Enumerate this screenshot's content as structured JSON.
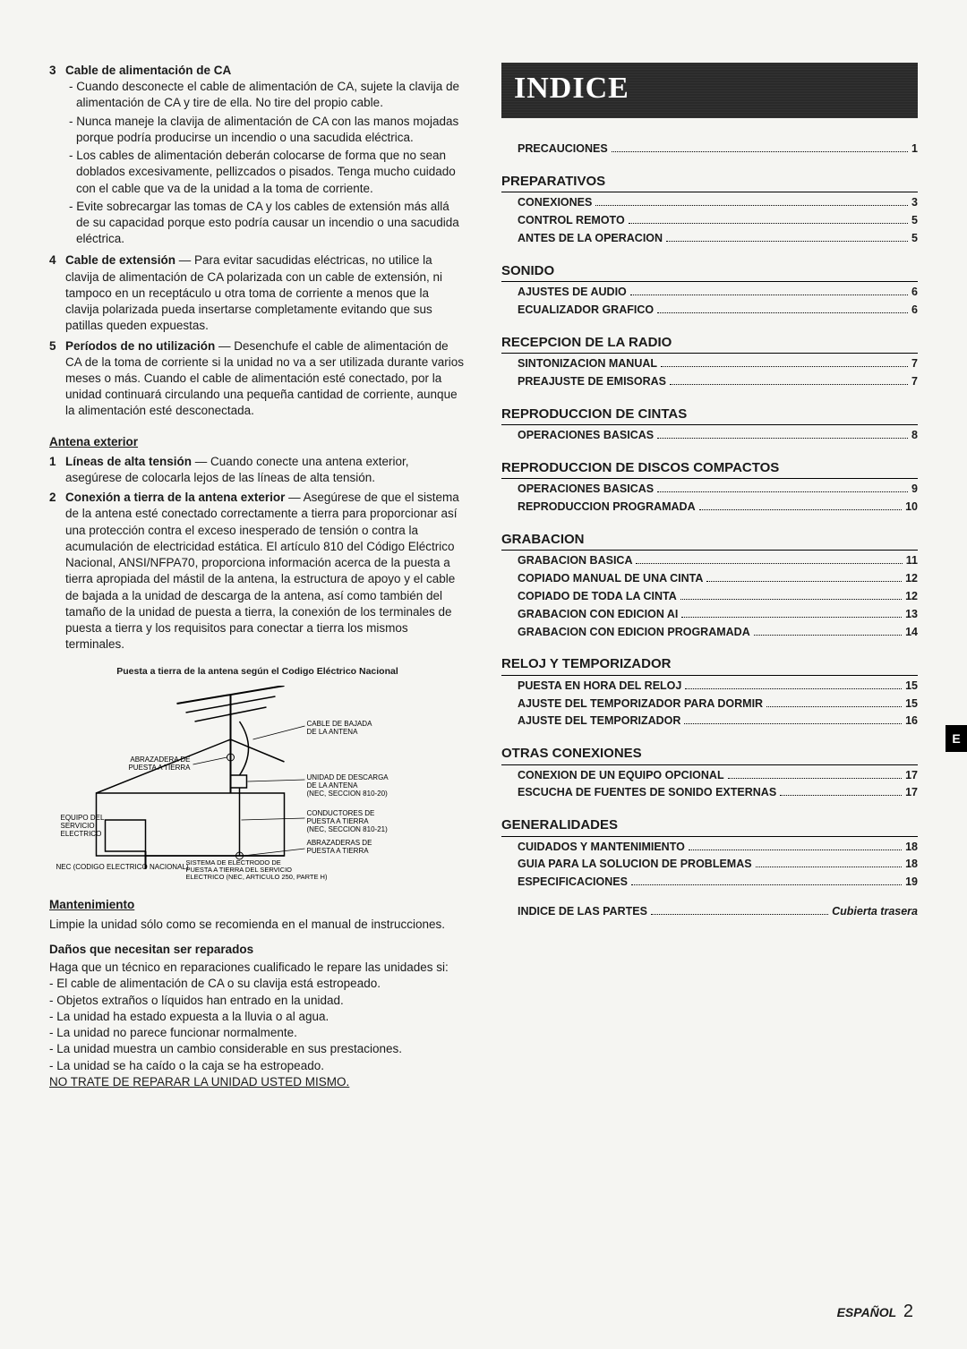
{
  "left": {
    "item3": {
      "num": "3",
      "title": "Cable de alimentación de CA",
      "bullets": [
        "- Cuando desconecte el cable de alimentación de CA, sujete la clavija de alimentación de CA y tire de ella. No tire del propio cable.",
        "- Nunca maneje la clavija de alimentación de CA con las manos mojadas porque podría producirse un incendio o una sacudida eléctrica.",
        "- Los cables de alimentación deberán colocarse de forma que no sean doblados excesivamente, pellizcados o pisados. Tenga mucho cuidado con el cable que va de la unidad a la toma de corriente.",
        "- Evite sobrecargar las tomas de CA y los cables de extensión más allá de su capacidad porque esto podría causar un incendio o una sacudida eléctrica."
      ]
    },
    "item4": {
      "num": "4",
      "title": "Cable de extensión",
      "text": " — Para evitar sacudidas eléctricas, no utilice la clavija de alimentación de CA polarizada con un cable de extensión, ni tampoco en un receptáculo u otra toma de corriente a menos que la clavija polarizada pueda insertarse completamente evitando que sus patillas queden expuestas."
    },
    "item5": {
      "num": "5",
      "title": "Períodos de no utilización",
      "text": " — Desenchufe el cable de alimentación de CA de la toma de corriente si la unidad no va a ser utilizada durante varios meses o más. Cuando el cable de alimentación esté conectado, por la unidad continuará circulando una pequeña cantidad de corriente, aunque la alimentación esté desconectada."
    },
    "antena": {
      "heading": "Antena exterior",
      "item1": {
        "num": "1",
        "title": "Líneas de alta tensión",
        "text": " — Cuando conecte una antena exterior, asegúrese de colocarla lejos de las líneas de alta tensión."
      },
      "item2": {
        "num": "2",
        "title": "Conexión a tierra de la antena exterior",
        "text": " — Asegúrese de que el sistema de la antena esté conectado correctamente a tierra para proporcionar así una protección contra el exceso inesperado de tensión o contra la acumulación de electricidad estática. El artículo 810 del Código Eléctrico Nacional, ANSI/NFPA70, proporciona información acerca de la puesta a tierra apropiada del mástil de la antena, la estructura de apoyo y el cable de bajada a la unidad de descarga de la antena, así como también del tamaño de la unidad de puesta a tierra, la conexión de los terminales de puesta a tierra y los requisitos para conectar a tierra los mismos terminales."
      }
    },
    "diagram": {
      "caption": "Puesta a tierra de la antena según el Codigo Eléctrico Nacional",
      "labels": {
        "cable_bajada": "CABLE DE BAJADA DE LA ANTENA",
        "abrazadera": "ABRAZADERA DE PUESTA A TIERRA",
        "unidad_descarga": "UNIDAD DE DESCARGA DE LA ANTENA (NEC, SECCION 810-20)",
        "equipo": "EQUIPO DEL SERVICIO ELECTRICO",
        "conductores": "CONDUCTORES DE PUESTA A TIERRA (NEC, SECCION 810-21)",
        "abrazaderas2": "ABRAZADERAS DE PUESTA A TIERRA",
        "sistema": "SISTEMA DE ELECTRODO DE PUESTA A TIERRA DEL SERVICIO ELECTRICO (NEC, ARTICULO 250, PARTE H)",
        "nec": "NEC (CODIGO ELECTRICO NACIONAL)"
      }
    },
    "mantenimiento": {
      "heading": "Mantenimiento",
      "text": "Limpie la unidad sólo como se recomienda en el manual de instrucciones."
    },
    "danos": {
      "heading": "Daños que necesitan ser reparados",
      "intro": "Haga que un técnico en reparaciones cualificado le repare las unidades si:",
      "bullets": [
        "- El cable de alimentación de CA o su clavija está estropeado.",
        "- Objetos extraños o líquidos han entrado en la unidad.",
        "- La unidad ha estado expuesta a la lluvia o al agua.",
        "- La unidad no parece funcionar normalmente.",
        "- La unidad muestra un cambio considerable en sus prestaciones.",
        "- La unidad se ha caído o la caja se ha estropeado."
      ],
      "notrate": "NO TRATE DE REPARAR LA UNIDAD USTED MISMO."
    }
  },
  "right": {
    "banner": "INDICE",
    "precauciones": {
      "label": "PRECAUCIONES",
      "page": "1"
    },
    "sections": [
      {
        "title": "PREPARATIVOS",
        "items": [
          {
            "label": "CONEXIONES",
            "page": "3"
          },
          {
            "label": "CONTROL REMOTO",
            "page": "5"
          },
          {
            "label": "ANTES DE LA OPERACION",
            "page": "5"
          }
        ]
      },
      {
        "title": "SONIDO",
        "items": [
          {
            "label": "AJUSTES DE AUDIO",
            "page": "6"
          },
          {
            "label": "ECUALIZADOR GRAFICO",
            "page": "6"
          }
        ]
      },
      {
        "title": "RECEPCION DE LA RADIO",
        "items": [
          {
            "label": "SINTONIZACION MANUAL",
            "page": "7"
          },
          {
            "label": "PREAJUSTE DE EMISORAS",
            "page": "7"
          }
        ]
      },
      {
        "title": "REPRODUCCION DE CINTAS",
        "items": [
          {
            "label": "OPERACIONES BASICAS",
            "page": "8"
          }
        ]
      },
      {
        "title": "REPRODUCCION DE DISCOS COMPACTOS",
        "items": [
          {
            "label": "OPERACIONES BASICAS",
            "page": "9"
          },
          {
            "label": "REPRODUCCION PROGRAMADA",
            "page": "10"
          }
        ]
      },
      {
        "title": "GRABACION",
        "items": [
          {
            "label": "GRABACION BASICA",
            "page": "11"
          },
          {
            "label": "COPIADO MANUAL DE UNA CINTA",
            "page": "12"
          },
          {
            "label": "COPIADO DE TODA LA CINTA",
            "page": "12"
          },
          {
            "label": "GRABACION CON EDICION AI",
            "page": "13"
          },
          {
            "label": "GRABACION CON EDICION PROGRAMADA",
            "page": "14"
          }
        ]
      },
      {
        "title": "RELOJ Y TEMPORIZADOR",
        "items": [
          {
            "label": "PUESTA EN HORA DEL RELOJ",
            "page": "15"
          },
          {
            "label": "AJUSTE DEL TEMPORIZADOR PARA DORMIR",
            "page": "15"
          },
          {
            "label": "AJUSTE DEL TEMPORIZADOR",
            "page": "16"
          }
        ]
      },
      {
        "title": "OTRAS CONEXIONES",
        "items": [
          {
            "label": "CONEXION DE UN EQUIPO OPCIONAL",
            "page": "17"
          },
          {
            "label": "ESCUCHA DE FUENTES DE SONIDO EXTERNAS",
            "page": "17"
          }
        ]
      },
      {
        "title": "GENERALIDADES",
        "items": [
          {
            "label": "CUIDADOS Y MANTENIMIENTO",
            "page": "18"
          },
          {
            "label": "GUIA PARA LA SOLUCION DE PROBLEMAS",
            "page": "18"
          },
          {
            "label": "ESPECIFICACIONES",
            "page": "19"
          }
        ]
      }
    ],
    "indice_partes": {
      "label": "INDICE DE LAS PARTES",
      "page": "Cubierta trasera"
    }
  },
  "tab": "E",
  "footer": {
    "label": "ESPAÑOL",
    "page": "2"
  }
}
